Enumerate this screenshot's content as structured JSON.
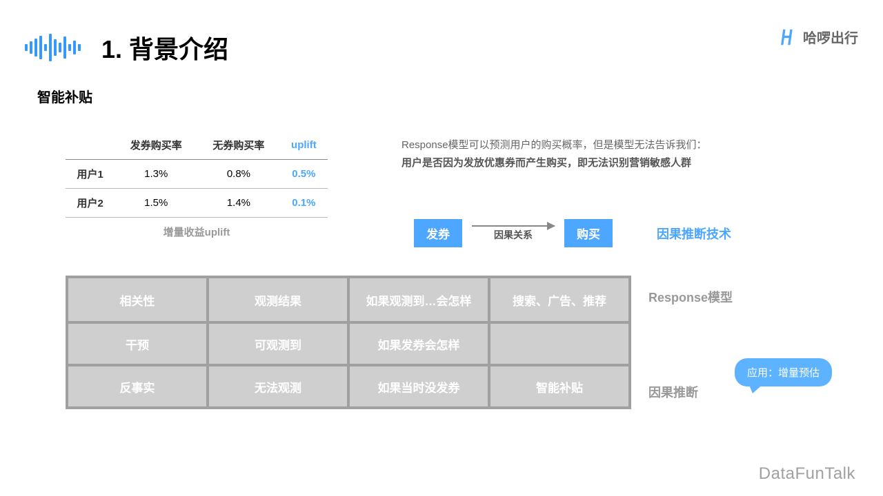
{
  "colors": {
    "accent": "#4da6ff",
    "muted": "#999999",
    "chip": "#4da6ff",
    "bubble": "#5db3ff",
    "matrix_cell": "#cfcfcf",
    "matrix_border": "#a0a0a0",
    "arrow": "#888888"
  },
  "title": "1. 背景介绍",
  "brand": "哈啰出行",
  "subtitle": "智能补贴",
  "table": {
    "headers": [
      "",
      "发券购买率",
      "无券购买率",
      "uplift"
    ],
    "accent_col": 3,
    "rows": [
      {
        "label": "用户1",
        "v1": "1.3%",
        "v2": "0.8%",
        "up": "0.5%"
      },
      {
        "label": "用户2",
        "v1": "1.5%",
        "v2": "1.4%",
        "up": "0.1%"
      }
    ],
    "caption": "增量收益uplift"
  },
  "desc_line1": "Response模型可以预测用户的购买概率，但是模型无法告诉我们：",
  "desc_line2": "用户是否因为发放优惠券而产生购买，即无法识别营销敏感人群",
  "causal": {
    "left": "发券",
    "arrow_label": "因果关系",
    "right": "购买",
    "tech": "因果推断技术"
  },
  "matrix": {
    "rows": [
      {
        "cells": [
          "相关性",
          "观测结果",
          "如果观测到…会怎样",
          "搜索、广告、推荐"
        ],
        "label": "Response模型",
        "label_top": 418
      },
      {
        "cells": [
          "干预",
          "可观测到",
          "如果发券会怎样",
          ""
        ],
        "label": "",
        "label_top": 0
      },
      {
        "cells": [
          "反事实",
          "无法观测",
          "如果当时没发券",
          "智能补贴"
        ],
        "label": "因果推断",
        "label_top": 556
      }
    ]
  },
  "bubble": "应用：增量预估",
  "footer": "DataFunTalk",
  "wave_bars": [
    10,
    18,
    26,
    34,
    10,
    40,
    24,
    14,
    32,
    10,
    20,
    10
  ]
}
